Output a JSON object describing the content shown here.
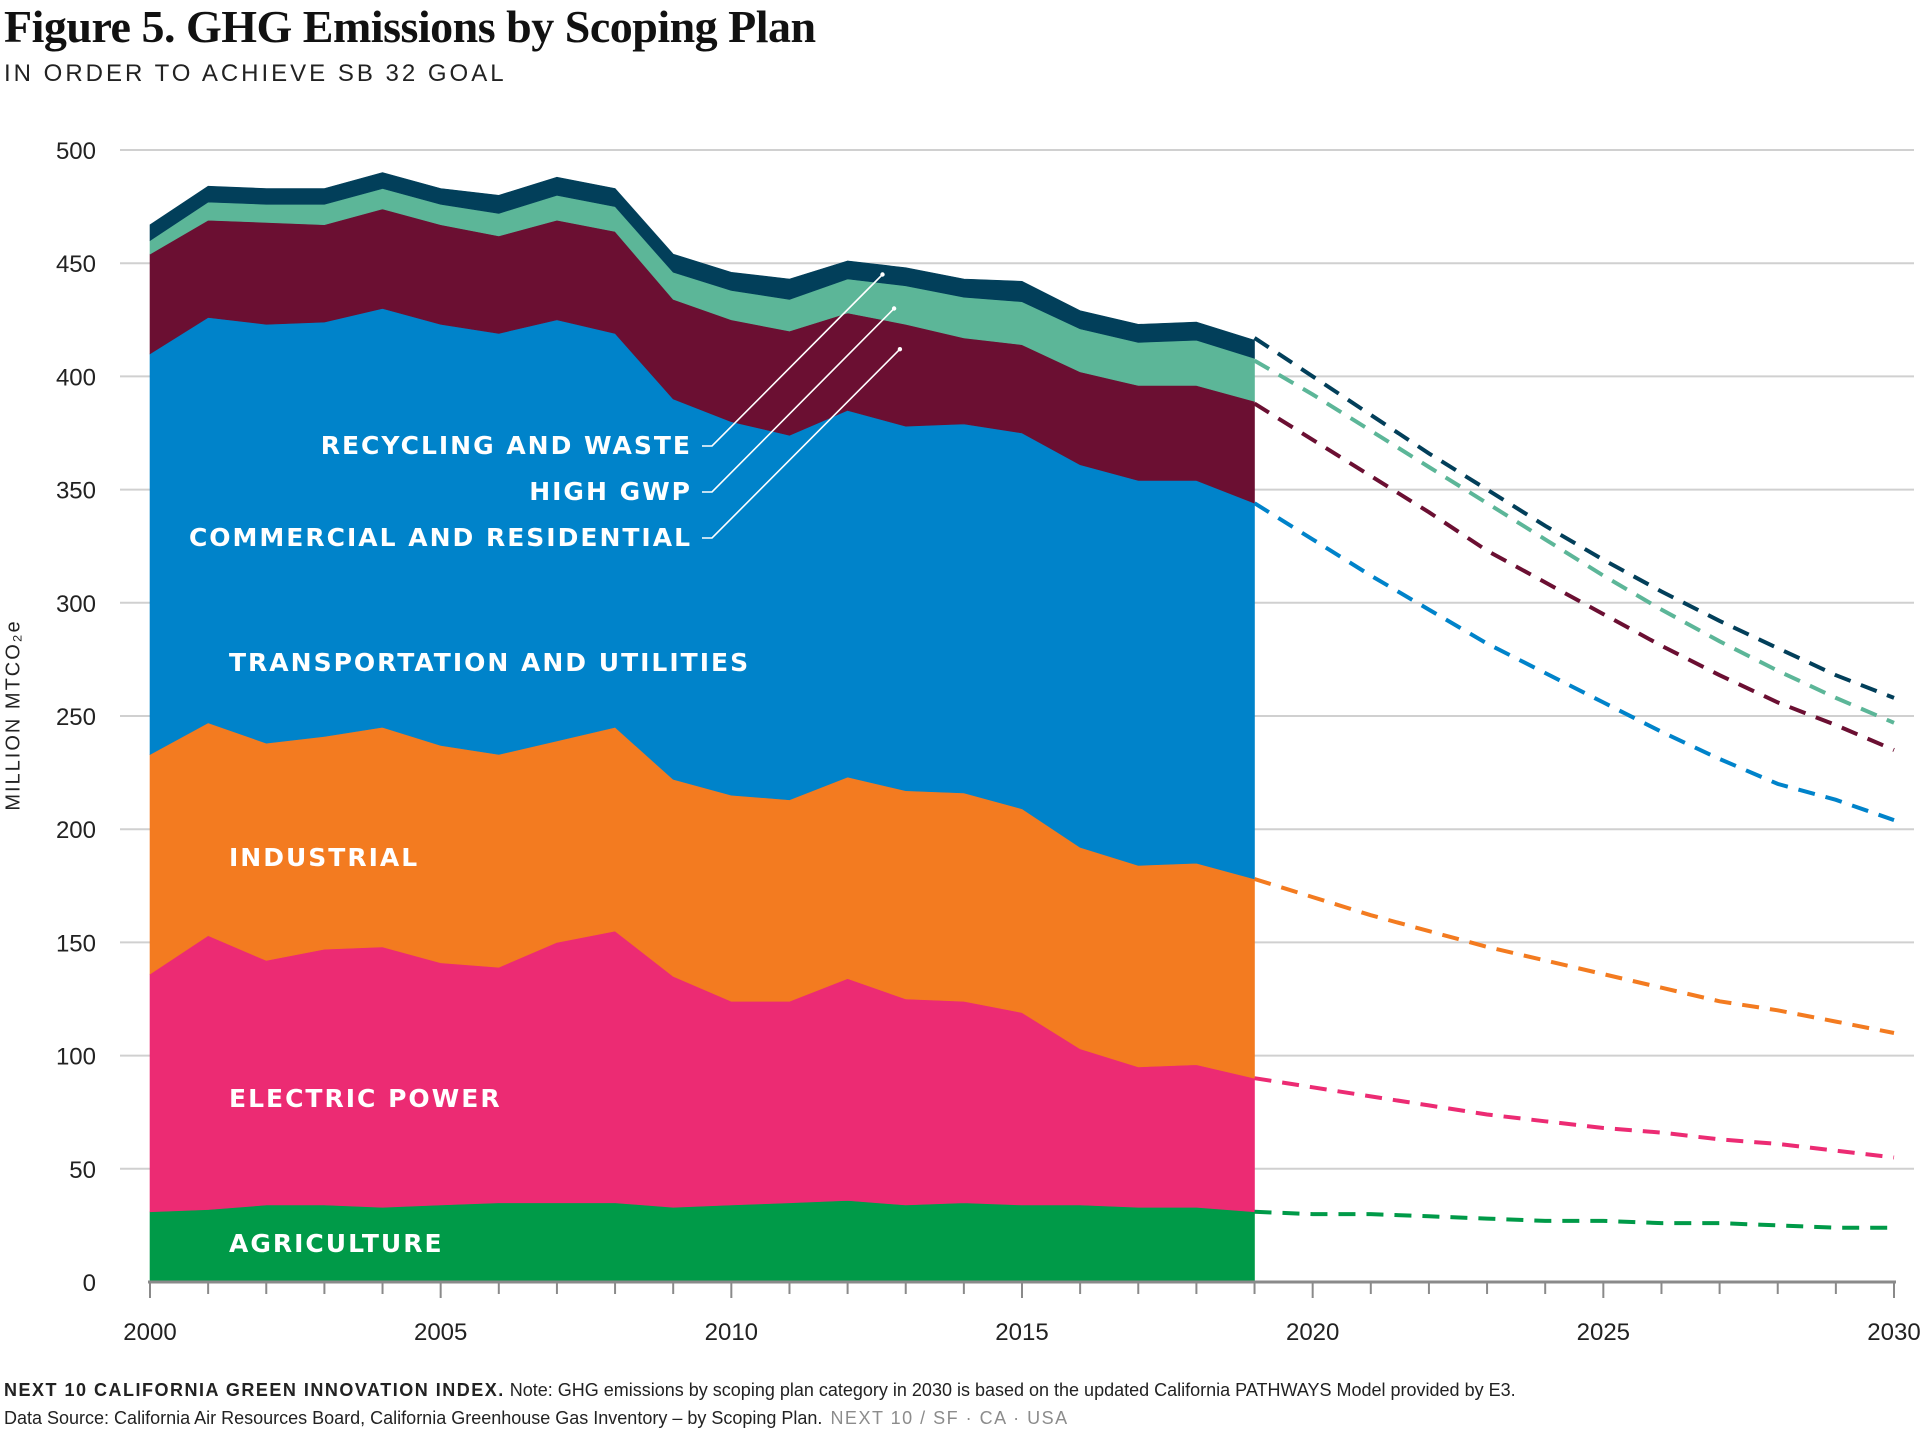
{
  "title": "Figure 5. GHG Emissions by Scoping Plan",
  "subtitle": "IN ORDER TO ACHIEVE SB 32 GOAL",
  "footer": {
    "brand_lead": "NEXT 10 CALIFORNIA GREEN INNOVATION INDEX.",
    "note": "Note: GHG emissions by scoping plan category in 2030 is based on the updated California PATHWAYS Model provided by E3.",
    "source": "Data Source: California Air Resources Board, California Greenhouse Gas Inventory – by Scoping Plan.",
    "brand_tag": "NEXT 10  /  SF · CA · USA"
  },
  "chart_data": {
    "type": "area",
    "stacked": true,
    "ylabel": "MILLION MTCO₂e",
    "xlabel": "",
    "ylim": [
      0,
      500
    ],
    "xlim": [
      2000,
      2030
    ],
    "x_ticks": [
      "2000",
      "2005",
      "2010",
      "2015",
      "2020",
      "2025",
      "2030"
    ],
    "y_ticks": [
      "0",
      "50",
      "100",
      "150",
      "200",
      "250",
      "300",
      "350",
      "400",
      "450",
      "500"
    ],
    "grid": true,
    "x": [
      2000,
      2001,
      2002,
      2003,
      2004,
      2005,
      2006,
      2007,
      2008,
      2009,
      2010,
      2011,
      2012,
      2013,
      2014,
      2015,
      2016,
      2017,
      2018,
      2019
    ],
    "series": [
      {
        "name": "AGRICULTURE",
        "color": "#009a48",
        "values": [
          31,
          32,
          34,
          34,
          33,
          34,
          35,
          35,
          35,
          33,
          34,
          35,
          36,
          34,
          35,
          34,
          34,
          33,
          33,
          31
        ]
      },
      {
        "name": "ELECTRIC POWER",
        "color": "#ec2b73",
        "values": [
          105,
          121,
          108,
          113,
          115,
          107,
          104,
          115,
          120,
          102,
          90,
          89,
          98,
          91,
          89,
          85,
          69,
          62,
          63,
          59
        ]
      },
      {
        "name": "INDUSTRIAL",
        "color": "#f37b20",
        "values": [
          97,
          94,
          96,
          94,
          97,
          96,
          94,
          89,
          90,
          87,
          91,
          89,
          89,
          92,
          92,
          90,
          89,
          89,
          89,
          88
        ]
      },
      {
        "name": "TRANSPORTATION AND UTILITIES",
        "color": "#0083ca",
        "values": [
          177,
          179,
          185,
          183,
          185,
          186,
          186,
          186,
          174,
          168,
          165,
          161,
          162,
          161,
          163,
          166,
          169,
          170,
          169,
          166
        ]
      },
      {
        "name": "COMMERCIAL AND RESIDENTIAL",
        "color": "#6b0f32",
        "values": [
          44,
          43,
          45,
          43,
          44,
          44,
          43,
          44,
          45,
          44,
          45,
          46,
          43,
          45,
          38,
          39,
          41,
          42,
          42,
          45
        ]
      },
      {
        "name": "HIGH GWP",
        "color": "#5cb698",
        "values": [
          6,
          8,
          8,
          9,
          9,
          9,
          10,
          11,
          11,
          12,
          13,
          14,
          15,
          17,
          18,
          19,
          19,
          19,
          20,
          19
        ]
      },
      {
        "name": "RECYCLING AND WASTE",
        "color": "#023f5a",
        "values": [
          7,
          7,
          7,
          7,
          7,
          7,
          8,
          8,
          8,
          8,
          8,
          9,
          8,
          8,
          8,
          9,
          8,
          8,
          8,
          8
        ]
      }
    ],
    "projection": {
      "style": "dashed",
      "series_order_from_bottom": [
        "AGRICULTURE",
        "ELECTRIC POWER",
        "INDUSTRIAL",
        "TRANSPORTATION AND UTILITIES",
        "COMMERCIAL AND RESIDENTIAL",
        "HIGH GWP",
        "RECYCLING AND WASTE"
      ],
      "cumulative_lines": [
        {
          "top_of": "AGRICULTURE",
          "color": "#009a48",
          "x": [
            2019,
            2020,
            2021,
            2022,
            2023,
            2024,
            2025,
            2026,
            2027,
            2028,
            2029,
            2030
          ],
          "y": [
            31,
            30,
            30,
            29,
            28,
            27,
            27,
            26,
            26,
            25,
            24,
            24
          ]
        },
        {
          "top_of": "ELECTRIC POWER",
          "color": "#ec2b73",
          "x": [
            2019,
            2020,
            2021,
            2022,
            2023,
            2024,
            2025,
            2026,
            2027,
            2028,
            2029,
            2030
          ],
          "y": [
            90,
            86,
            82,
            78,
            74,
            71,
            68,
            66,
            63,
            61,
            58,
            55
          ]
        },
        {
          "top_of": "INDUSTRIAL",
          "color": "#f37b20",
          "x": [
            2019,
            2020,
            2021,
            2022,
            2023,
            2024,
            2025,
            2026,
            2027,
            2028,
            2029,
            2030
          ],
          "y": [
            178,
            170,
            162,
            155,
            148,
            142,
            136,
            130,
            124,
            120,
            115,
            110
          ]
        },
        {
          "top_of": "TRANSPORTATION AND UTILITIES",
          "color": "#0083ca",
          "x": [
            2019,
            2020,
            2021,
            2022,
            2023,
            2024,
            2025,
            2026,
            2027,
            2028,
            2029,
            2030
          ],
          "y": [
            344,
            328,
            312,
            297,
            282,
            269,
            256,
            243,
            231,
            220,
            213,
            204
          ]
        },
        {
          "top_of": "COMMERCIAL AND RESIDENTIAL",
          "color": "#6b0f32",
          "x": [
            2019,
            2020,
            2021,
            2022,
            2023,
            2024,
            2025,
            2026,
            2027,
            2028,
            2029,
            2030
          ],
          "y": [
            388,
            372,
            356,
            340,
            323,
            309,
            295,
            281,
            268,
            256,
            246,
            235
          ]
        },
        {
          "top_of": "HIGH GWP",
          "color": "#5cb698",
          "x": [
            2019,
            2020,
            2021,
            2022,
            2023,
            2024,
            2025,
            2026,
            2027,
            2028,
            2029,
            2030
          ],
          "y": [
            407,
            392,
            376,
            360,
            344,
            328,
            312,
            297,
            283,
            270,
            258,
            247
          ]
        },
        {
          "top_of": "RECYCLING AND WASTE",
          "color": "#023f5a",
          "x": [
            2019,
            2020,
            2021,
            2022,
            2023,
            2024,
            2025,
            2026,
            2027,
            2028,
            2029,
            2030
          ],
          "y": [
            417,
            400,
            383,
            366,
            350,
            334,
            319,
            305,
            292,
            280,
            268,
            258
          ]
        }
      ]
    },
    "annotations": [
      {
        "text": "RECYCLING AND WASTE",
        "points_to": "RECYCLING AND WASTE",
        "leader_to": [
          2012.6,
          445
        ]
      },
      {
        "text": "HIGH GWP",
        "points_to": "HIGH GWP",
        "leader_to": [
          2012.8,
          430
        ]
      },
      {
        "text": "COMMERCIAL AND RESIDENTIAL",
        "points_to": "COMMERCIAL AND RESIDENTIAL",
        "leader_to": [
          2012.9,
          412
        ]
      }
    ]
  }
}
